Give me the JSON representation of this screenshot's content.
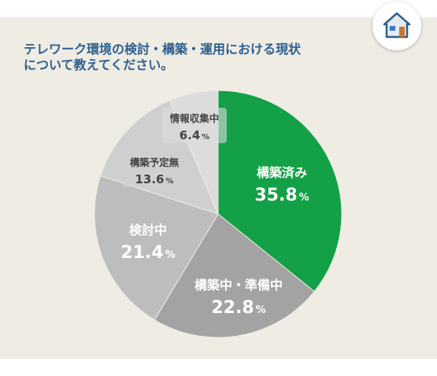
{
  "question": {
    "line1": "テレワーク環境の検討・構築・運用における現状",
    "line2": "について教えてください。"
  },
  "badge": {
    "icon": "house-icon"
  },
  "colors": {
    "panel_bg": "#efece4",
    "question_text": "#2d5f8f",
    "slice_complete": "#13a046",
    "slice_in_progress": "#a3a3a3",
    "slice_considering": "#bdbdbd",
    "slice_no_plan": "#cfcfcf",
    "slice_collecting": "#dcdcdc"
  },
  "chart_data": {
    "type": "pie",
    "title": "",
    "slices": [
      {
        "label": "構築済み",
        "value": 35.8,
        "display": "35.8",
        "color": "#13a046",
        "text_color": "#ffffff"
      },
      {
        "label": "構築中・準備中",
        "value": 22.8,
        "display": "22.8",
        "color": "#a3a3a3",
        "text_color": "#ffffff"
      },
      {
        "label": "検討中",
        "value": 21.4,
        "display": "21.4",
        "color": "#bdbdbd",
        "text_color": "#ffffff"
      },
      {
        "label": "構築予定無",
        "value": 13.6,
        "display": "13.6",
        "color": "#cfcfcf",
        "text_color": "#444444"
      },
      {
        "label": "情報収集中",
        "value": 6.4,
        "display": "6.4",
        "color": "#dcdcdc",
        "text_color": "#444444"
      }
    ],
    "unit": "%",
    "start_angle": "12 o'clock",
    "direction": "clockwise"
  }
}
